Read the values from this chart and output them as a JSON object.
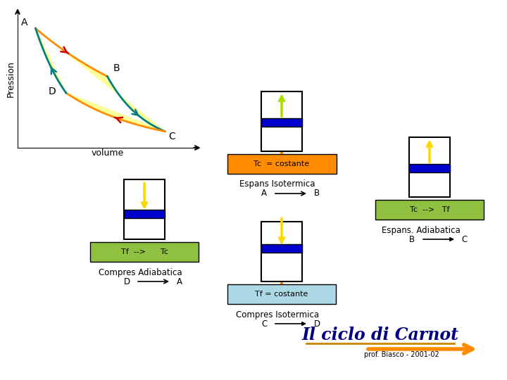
{
  "title": "Il ciclo di Carnot",
  "subtitle": "prof. Biasco - 2001-02",
  "pv_xlabel": "volume",
  "pv_ylabel": "Pression",
  "bg_color": "#ffffff",
  "orange_color": "#FF8C00",
  "green_color": "#90C040",
  "light_blue_color": "#ADD8E6",
  "blue_color": "#0000CC",
  "teal_color": "#008080",
  "red_color": "#CC0000",
  "yellow_fill": "#FFFF99",
  "yellow_rod": "#FFD700",
  "green_rod": "#AADD00",
  "navy_color": "#000080",
  "label_A": "A",
  "label_B": "B",
  "label_C": "C",
  "label_D": "D",
  "box1_label": "Tc  = costante",
  "box2_label": "Tf  -->      Tc",
  "box3_label": "Tf = costante",
  "box4_label": "Tc  -->   Tf",
  "text_espans_iso": "Espans Isotermica",
  "text_comp_adi": "Compres Adiabatica",
  "text_comp_iso": "Compres Isotermica",
  "text_espans_adi": "Espans. Adiabatica"
}
